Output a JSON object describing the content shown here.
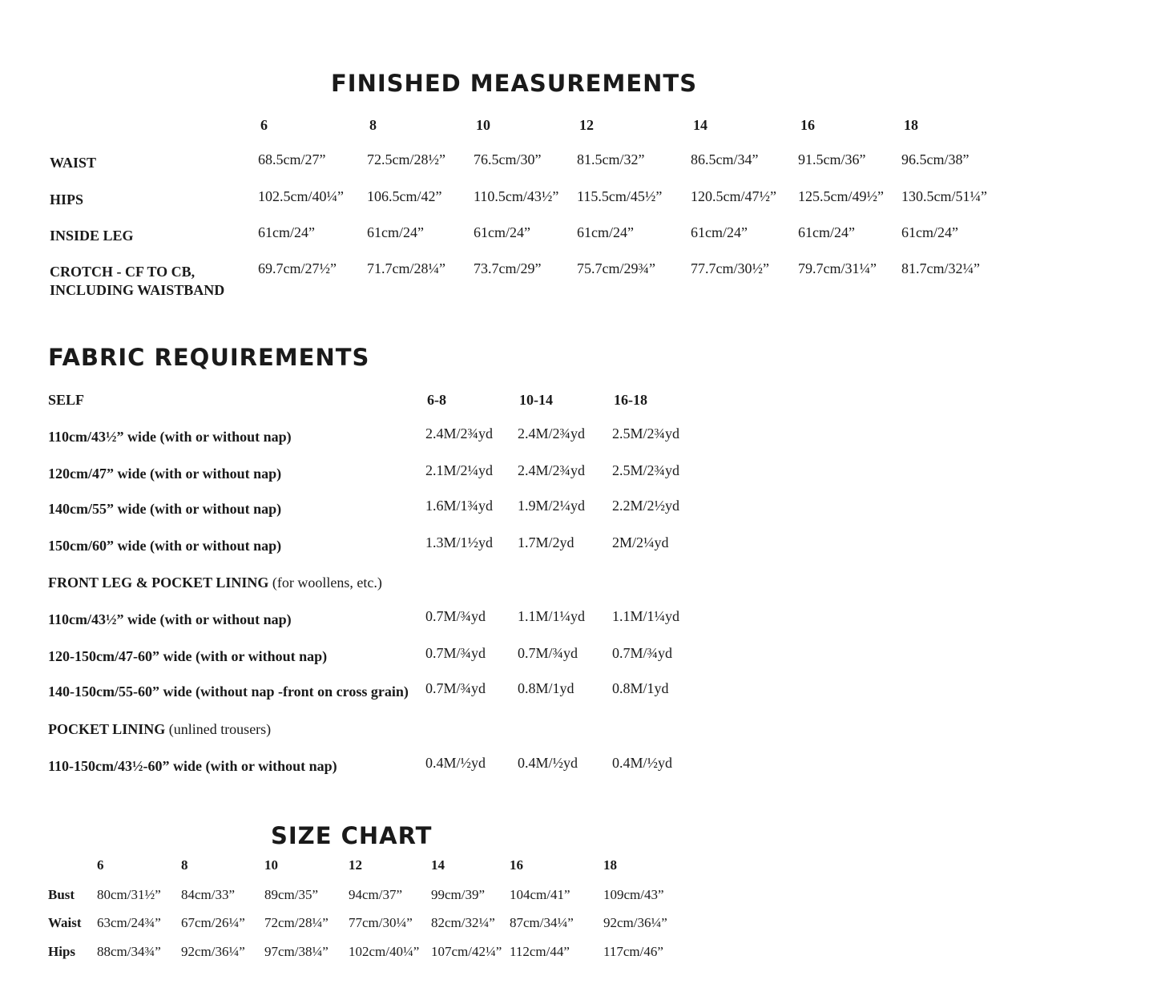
{
  "finished": {
    "title": "FINISHED MEASUREMENTS",
    "sizes": [
      "6",
      "8",
      "10",
      "12",
      "14",
      "16",
      "18"
    ],
    "rows": [
      {
        "label": [
          "WAIST"
        ],
        "values": [
          "68.5cm/27”",
          "72.5cm/28½”",
          "76.5cm/30”",
          "81.5cm/32”",
          "86.5cm/34”",
          "91.5cm/36”",
          "96.5cm/38”"
        ]
      },
      {
        "label": [
          "HIPS"
        ],
        "values": [
          "102.5cm/40¼”",
          "106.5cm/42”",
          "110.5cm/43½”",
          "115.5cm/45½”",
          "120.5cm/47½”",
          "125.5cm/49½”",
          "130.5cm/51¼”"
        ]
      },
      {
        "label": [
          "INSIDE LEG"
        ],
        "values": [
          "61cm/24”",
          "61cm/24”",
          "61cm/24”",
          "61cm/24”",
          "61cm/24”",
          "61cm/24”",
          "61cm/24”"
        ]
      },
      {
        "label": [
          "CROTCH - CF TO CB,",
          "INCLUDING WAISTBAND"
        ],
        "values": [
          "69.7cm/27½”",
          "71.7cm/28¼”",
          "73.7cm/29”",
          "75.7cm/29¾”",
          "77.7cm/30½”",
          "79.7cm/31¼”",
          "81.7cm/32¼”"
        ]
      }
    ]
  },
  "fabric": {
    "title": "FABRIC REQUIREMENTS",
    "size_groups": [
      "6-8",
      "10-14",
      "16-18"
    ],
    "sections": [
      {
        "heading": "SELF",
        "note": "",
        "rows": [
          {
            "label": "110cm/43½” wide (with or without nap)",
            "values": [
              "2.4M/2¾yd",
              "2.4M/2¾yd",
              "2.5M/2¾yd"
            ]
          },
          {
            "label": "120cm/47” wide (with or without nap)",
            "values": [
              "2.1M/2¼yd",
              "2.4M/2¾yd",
              "2.5M/2¾yd"
            ]
          },
          {
            "label": "140cm/55” wide (with or without nap)",
            "values": [
              "1.6M/1¾yd",
              "1.9M/2¼yd",
              "2.2M/2½yd"
            ]
          },
          {
            "label": "150cm/60” wide (with or without nap)",
            "values": [
              "1.3M/1½yd",
              "1.7M/2yd",
              "2M/2¼yd"
            ]
          }
        ]
      },
      {
        "heading": "FRONT LEG & POCKET LINING",
        "note": "(for woollens, etc.)",
        "rows": [
          {
            "label": "110cm/43½” wide (with or without nap)",
            "values": [
              "0.7M/¾yd",
              "1.1M/1¼yd",
              "1.1M/1¼yd"
            ]
          },
          {
            "label": "120-150cm/47-60” wide (with or without nap)",
            "values": [
              "0.7M/¾yd",
              "0.7M/¾yd",
              "0.7M/¾yd"
            ]
          },
          {
            "label": "140-150cm/55-60” wide (without nap -front on cross grain)",
            "values": [
              "0.7M/¾yd",
              "0.8M/1yd",
              "0.8M/1yd"
            ]
          }
        ]
      },
      {
        "heading": "POCKET LINING",
        "note": "(unlined trousers)",
        "rows": [
          {
            "label": "110-150cm/43½-60” wide (with or without nap)",
            "values": [
              "0.4M/½yd",
              "0.4M/½yd",
              "0.4M/½yd"
            ]
          }
        ]
      }
    ]
  },
  "size_chart": {
    "title": "SIZE CHART",
    "sizes": [
      "6",
      "8",
      "10",
      "12",
      "14",
      "16",
      "18"
    ],
    "rows": [
      {
        "label": "Bust",
        "values": [
          "80cm/31½”",
          "84cm/33”",
          "89cm/35”",
          "94cm/37”",
          "99cm/39”",
          "104cm/41”",
          "109cm/43”"
        ]
      },
      {
        "label": "Waist",
        "values": [
          "63cm/24¾”",
          "67cm/26¼”",
          "72cm/28¼”",
          "77cm/30¼”",
          "82cm/32¼”",
          "87cm/34¼”",
          "92cm/36¼”"
        ]
      },
      {
        "label": "Hips",
        "values": [
          "88cm/34¾”",
          "92cm/36¼”",
          "97cm/38¼”",
          "102cm/40¼”",
          "107cm/42¼”",
          "112cm/44”",
          "117cm/46”"
        ]
      }
    ]
  }
}
